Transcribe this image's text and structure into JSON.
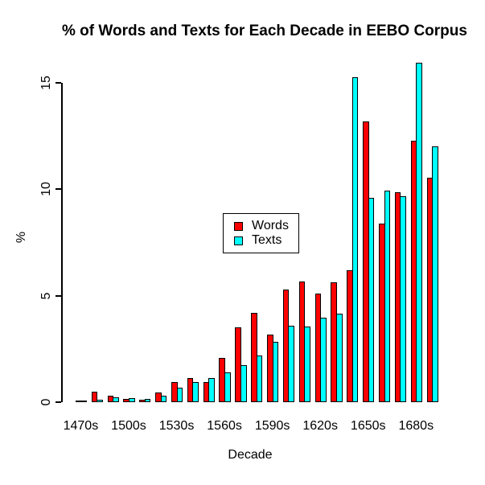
{
  "title": "% of Words and Texts for Each Decade in EEBO Corpus",
  "chart_data": {
    "type": "bar",
    "title": "% of Words and Texts for Each Decade in EEBO Corpus",
    "xlabel": "Decade",
    "ylabel": "%",
    "ylim": [
      0,
      16
    ],
    "yticks": [
      0,
      5,
      10,
      15
    ],
    "grid": false,
    "legend_position": "center",
    "bar_border_color": "#000000",
    "categories": [
      "1470s",
      "1480s",
      "1490s",
      "1500s",
      "1510s",
      "1520s",
      "1530s",
      "1540s",
      "1550s",
      "1560s",
      "1570s",
      "1580s",
      "1590s",
      "1600s",
      "1610s",
      "1620s",
      "1630s",
      "1640s",
      "1650s",
      "1660s",
      "1670s",
      "1680s",
      "1690s"
    ],
    "x_tick_labels": [
      "1470s",
      "1500s",
      "1530s",
      "1560s",
      "1590s",
      "1620s",
      "1650s",
      "1680s"
    ],
    "x_tick_every": 3,
    "series": [
      {
        "name": "Words",
        "color": "#FF0000",
        "values": [
          0.09,
          0.5,
          0.31,
          0.16,
          0.11,
          0.44,
          0.93,
          1.12,
          0.95,
          2.09,
          3.53,
          4.21,
          3.16,
          5.28,
          5.66,
          5.09,
          5.63,
          6.2,
          13.19,
          8.37,
          9.85,
          12.28,
          10.54
        ]
      },
      {
        "name": "Texts",
        "color": "#00FFFF",
        "values": [
          0.06,
          0.12,
          0.22,
          0.18,
          0.14,
          0.31,
          0.67,
          0.93,
          1.12,
          1.41,
          1.75,
          2.19,
          2.84,
          3.6,
          3.55,
          3.98,
          4.14,
          15.28,
          9.6,
          9.92,
          9.69,
          15.96,
          12.0
        ]
      }
    ]
  }
}
